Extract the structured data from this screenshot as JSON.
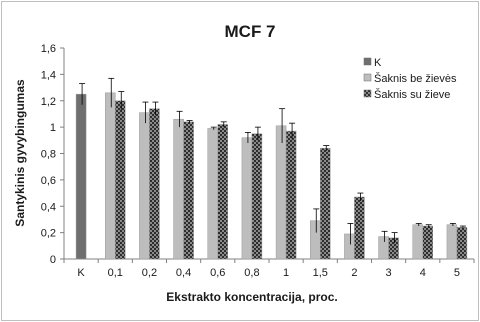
{
  "chart_data": {
    "type": "bar",
    "title": "MCF 7",
    "xlabel": "Ekstrakto koncentracija, proc.",
    "ylabel": "Santykinis gyvybingumas",
    "ylim": [
      0,
      1.6
    ],
    "yticks": [
      "0",
      "0,2",
      "0,4",
      "0,6",
      "0,8",
      "1",
      "1,2",
      "1,4",
      "1,6"
    ],
    "categories": [
      "K",
      "0,1",
      "0,2",
      "0,4",
      "0,6",
      "0,8",
      "1",
      "1,5",
      "2",
      "3",
      "4",
      "5"
    ],
    "grid": false,
    "legend_position": "top-right",
    "series": [
      {
        "name": "K",
        "color": "#6f6f6f",
        "pattern": "solid",
        "values": [
          1.25,
          null,
          null,
          null,
          null,
          null,
          null,
          null,
          null,
          null,
          null,
          null
        ],
        "errors": [
          0.08,
          null,
          null,
          null,
          null,
          null,
          null,
          null,
          null,
          null,
          null,
          null
        ]
      },
      {
        "name": "Šaknis be žievės",
        "color": "#bdbdbd",
        "pattern": "solid",
        "values": [
          null,
          1.26,
          1.11,
          1.06,
          0.99,
          0.92,
          1.01,
          0.29,
          0.19,
          0.17,
          0.26,
          0.26
        ],
        "errors": [
          null,
          0.11,
          0.08,
          0.06,
          0.01,
          0.04,
          0.13,
          0.09,
          0.08,
          0.04,
          0.01,
          0.01
        ]
      },
      {
        "name": "Šaknis su žieve",
        "color": "#4a4a4a",
        "pattern": "checker",
        "values": [
          null,
          1.2,
          1.14,
          1.04,
          1.02,
          0.95,
          0.97,
          0.84,
          0.47,
          0.16,
          0.25,
          0.24
        ],
        "errors": [
          null,
          0.07,
          0.05,
          0.01,
          0.02,
          0.05,
          0.06,
          0.02,
          0.03,
          0.04,
          0.01,
          0.01
        ]
      }
    ]
  }
}
